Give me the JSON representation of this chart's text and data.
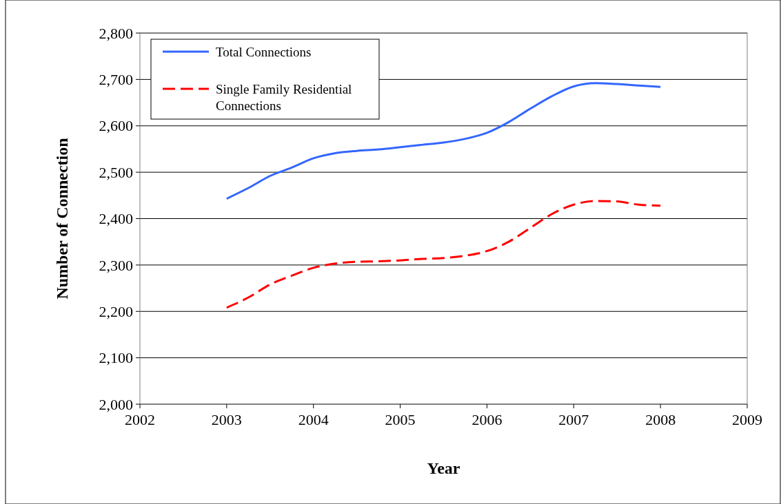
{
  "chart_data": {
    "type": "line",
    "xlabel": "Year",
    "ylabel": "Number of Connection",
    "xlim": [
      2002,
      2009
    ],
    "xticks": [
      2002,
      2003,
      2004,
      2005,
      2006,
      2007,
      2008,
      2009
    ],
    "ylim": [
      2000,
      2800
    ],
    "yticks": [
      {
        "value": 2000,
        "label": "2,000"
      },
      {
        "value": 2100,
        "label": "2,100"
      },
      {
        "value": 2200,
        "label": "2,200"
      },
      {
        "value": 2300,
        "label": "2,300"
      },
      {
        "value": 2400,
        "label": "2,400"
      },
      {
        "value": 2500,
        "label": "2,500"
      },
      {
        "value": 2600,
        "label": "2,600"
      },
      {
        "value": 2700,
        "label": "2,700"
      },
      {
        "value": 2800,
        "label": "2,800"
      }
    ],
    "grid": "y",
    "legend": "top left",
    "marker": "none",
    "x": [
      2003,
      2003.25,
      2003.5,
      2003.75,
      2004,
      2004.25,
      2004.5,
      2004.75,
      2005,
      2005.25,
      2005.5,
      2005.75,
      2006,
      2006.25,
      2006.5,
      2006.75,
      2007,
      2007.25,
      2007.5,
      2007.75,
      2008
    ],
    "series": [
      {
        "name": "Total Connections",
        "color": "#3366ff",
        "line_style": "solid",
        "values": [
          2443,
          2466,
          2492,
          2510,
          2530,
          2541,
          2546,
          2549,
          2554,
          2559,
          2564,
          2572,
          2585,
          2608,
          2637,
          2664,
          2685,
          2692,
          2690,
          2687,
          2684
        ]
      },
      {
        "name": "Single Family Residential Connections",
        "color": "#ff0000",
        "line_style": "dashed",
        "values": [
          2208,
          2230,
          2258,
          2277,
          2294,
          2303,
          2307,
          2308,
          2310,
          2313,
          2315,
          2320,
          2330,
          2350,
          2380,
          2410,
          2430,
          2438,
          2437,
          2430,
          2428
        ]
      }
    ]
  }
}
